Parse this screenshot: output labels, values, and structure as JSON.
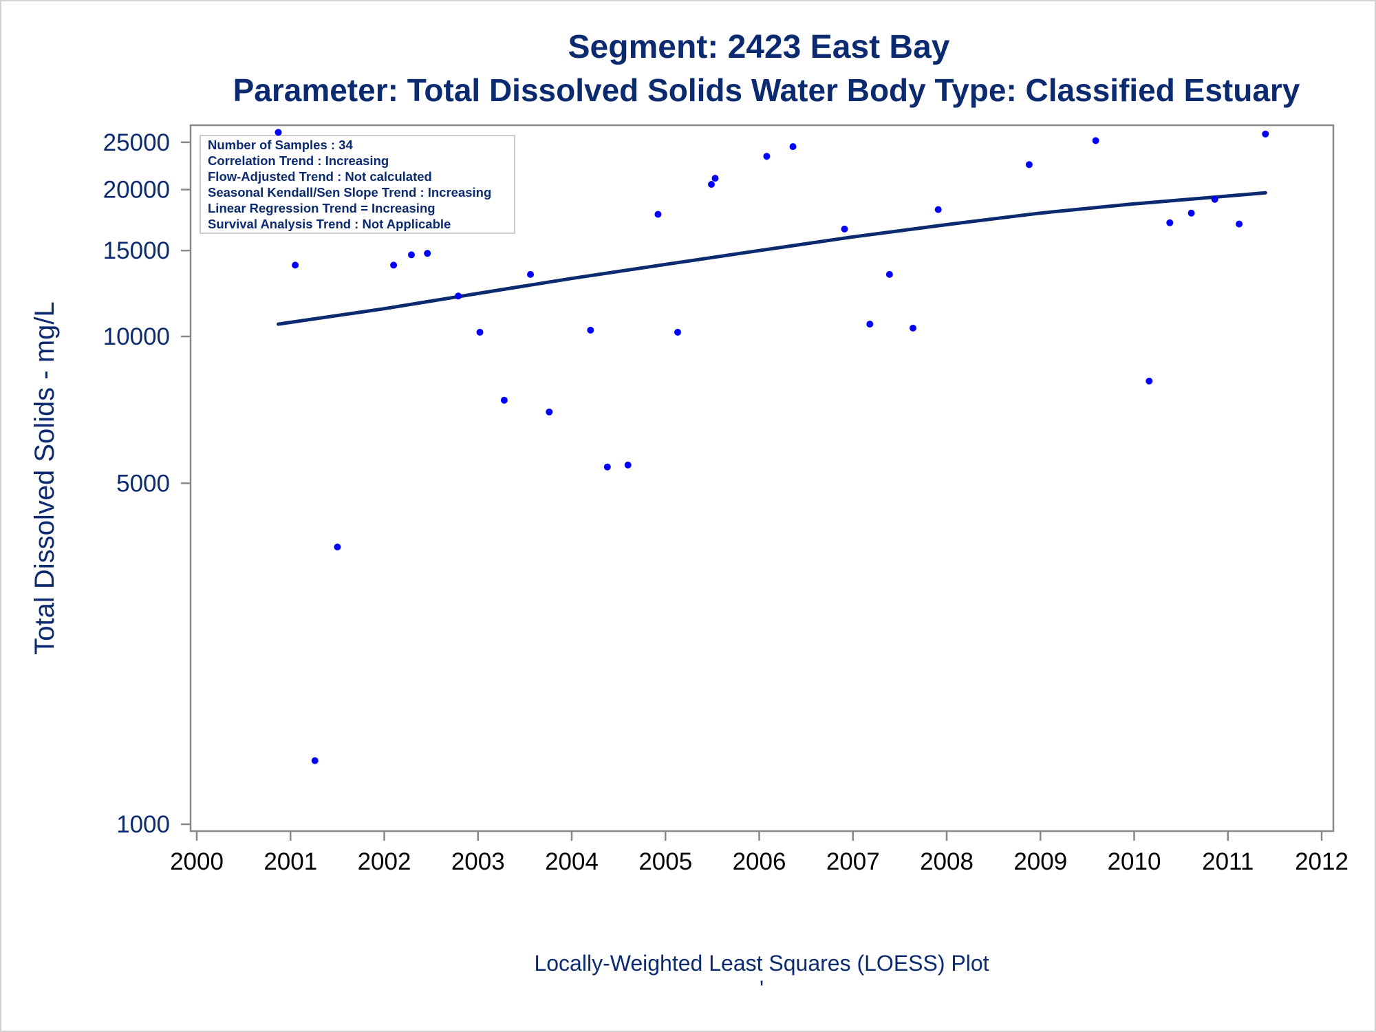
{
  "chart_data": {
    "type": "scatter",
    "title": "Segment: 2423  East Bay",
    "subtitle": "Parameter: Total Dissolved Solids   Water Body Type: Classified Estuary",
    "ylabel": "Total Dissolved Solids - mg/L",
    "xlabel": "Locally-Weighted Least Squares (LOESS) Plot",
    "footnote": "'",
    "y_scale": "log",
    "xlim": [
      2000,
      2012
    ],
    "ylim": [
      1000,
      28000
    ],
    "x_ticks": [
      "2000",
      "2001",
      "2002",
      "2003",
      "2004",
      "2005",
      "2006",
      "2007",
      "2008",
      "2009",
      "2010",
      "2011",
      "2012"
    ],
    "y_ticks": [
      "1000",
      "5000",
      "10000",
      "15000",
      "20000",
      "25000"
    ],
    "grid": false,
    "colors": {
      "text": "#0b2a6f",
      "points": "#0000ff",
      "line": "#0b2a6f",
      "axis": "#888888"
    },
    "stats_box": {
      "placement": "top-left",
      "lines": [
        "Number of Samples : 34",
        "Correlation Trend : Increasing",
        "Flow-Adjusted Trend : Not calculated",
        "Seasonal Kendall/Sen Slope Trend : Increasing",
        "Linear Regression Trend = Increasing",
        "Survival Analysis Trend : Not Applicable"
      ]
    },
    "series": [
      {
        "type": "scatter",
        "points": [
          [
            2000.87,
            26200
          ],
          [
            2001.05,
            14000
          ],
          [
            2001.26,
            1350
          ],
          [
            2001.5,
            3700
          ],
          [
            2002.1,
            14000
          ],
          [
            2002.29,
            14700
          ],
          [
            2002.46,
            14800
          ],
          [
            2002.79,
            12100
          ],
          [
            2003.02,
            10200
          ],
          [
            2003.28,
            7400
          ],
          [
            2003.56,
            13400
          ],
          [
            2003.76,
            7000
          ],
          [
            2004.2,
            10300
          ],
          [
            2004.38,
            5400
          ],
          [
            2004.6,
            5450
          ],
          [
            2004.92,
            17800
          ],
          [
            2005.13,
            10200
          ],
          [
            2005.49,
            20500
          ],
          [
            2005.53,
            21100
          ],
          [
            2006.08,
            23400
          ],
          [
            2006.36,
            24500
          ],
          [
            2006.91,
            16600
          ],
          [
            2007.18,
            10600
          ],
          [
            2007.39,
            13400
          ],
          [
            2007.64,
            10400
          ],
          [
            2007.91,
            18200
          ],
          [
            2008.88,
            22500
          ],
          [
            2009.59,
            25200
          ],
          [
            2010.16,
            8100
          ],
          [
            2010.38,
            17100
          ],
          [
            2010.61,
            17900
          ],
          [
            2010.86,
            19100
          ],
          [
            2011.12,
            17000
          ],
          [
            2011.4,
            26000
          ]
        ]
      },
      {
        "type": "line",
        "points": [
          [
            2000.87,
            10600
          ],
          [
            2002.0,
            11400
          ],
          [
            2003.0,
            12250
          ],
          [
            2004.0,
            13150
          ],
          [
            2005.0,
            14050
          ],
          [
            2006.0,
            15000
          ],
          [
            2007.0,
            16000
          ],
          [
            2008.0,
            16950
          ],
          [
            2009.0,
            17900
          ],
          [
            2010.0,
            18700
          ],
          [
            2011.0,
            19400
          ],
          [
            2011.4,
            19700
          ]
        ]
      }
    ]
  }
}
